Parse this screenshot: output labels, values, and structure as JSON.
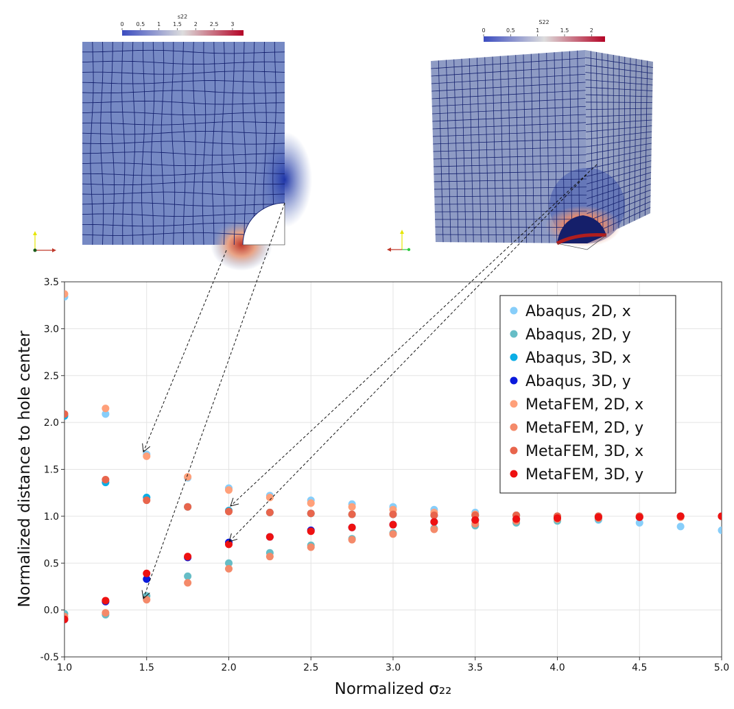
{
  "insets": {
    "left": {
      "colorbar_title": "s22",
      "colorbar_ticks": [
        "0",
        "0.5",
        "1",
        "1.5",
        "2",
        "2.5",
        "3"
      ]
    },
    "right": {
      "colorbar_title": "S22",
      "colorbar_ticks": [
        "0",
        "0.5",
        "1",
        "1.5",
        "2"
      ]
    }
  },
  "colors": {
    "abaqus_2d_x": "#87CEFA",
    "abaqus_2d_y": "#66BDC6",
    "abaqus_3d_x": "#0BAEE6",
    "abaqus_3d_y": "#0A1ADC",
    "metafem_2d_x": "#FFA07A",
    "metafem_2d_y": "#F48A6A",
    "metafem_3d_x": "#E8654C",
    "metafem_3d_y": "#EE1111",
    "colormap_low": "#3B4CC0",
    "colormap_mid": "#DDDDDD",
    "colormap_high": "#B40426"
  },
  "chart_data": {
    "type": "scatter",
    "xlabel": "Normalized σ₂₂",
    "ylabel": "Normalized distance to hole center",
    "xlim": [
      1.0,
      5.0
    ],
    "ylim": [
      -0.5,
      3.5
    ],
    "x_ticks": [
      "1.0",
      "1.5",
      "2.0",
      "2.5",
      "3.0",
      "3.5",
      "4.0",
      "4.5",
      "5.0"
    ],
    "y_ticks": [
      "-0.5",
      "0.0",
      "0.5",
      "1.0",
      "1.5",
      "2.0",
      "2.5",
      "3.0",
      "3.5"
    ],
    "grid": true,
    "legend_position": "top-right",
    "series": [
      {
        "name": "Abaqus, 2D, x",
        "color": "#87CEFA",
        "points": [
          [
            1.0,
            3.34
          ],
          [
            1.25,
            2.09
          ],
          [
            1.5,
            1.66
          ],
          [
            1.75,
            1.41
          ],
          [
            2.0,
            1.3
          ],
          [
            2.25,
            1.22
          ],
          [
            2.5,
            1.17
          ],
          [
            2.75,
            1.13
          ],
          [
            3.0,
            1.1
          ],
          [
            3.25,
            1.07
          ],
          [
            3.5,
            1.04
          ],
          [
            3.75,
            1.01
          ],
          [
            4.0,
            0.98
          ],
          [
            4.25,
            0.96
          ],
          [
            4.5,
            0.93
          ],
          [
            4.75,
            0.89
          ],
          [
            5.0,
            0.85
          ]
        ]
      },
      {
        "name": "Abaqus, 2D, y",
        "color": "#66BDC6",
        "points": [
          [
            1.0,
            -0.04
          ],
          [
            1.25,
            -0.05
          ],
          [
            1.5,
            0.15
          ],
          [
            1.75,
            0.36
          ],
          [
            2.0,
            0.5
          ],
          [
            2.25,
            0.61
          ],
          [
            2.5,
            0.69
          ],
          [
            2.75,
            0.76
          ],
          [
            3.0,
            0.82
          ],
          [
            3.25,
            0.87
          ],
          [
            3.5,
            0.9
          ],
          [
            3.75,
            0.93
          ],
          [
            4.0,
            0.95
          ],
          [
            4.25,
            0.97
          ],
          [
            4.5,
            0.99
          ],
          [
            4.75,
            1.0
          ],
          [
            5.0,
            1.0
          ]
        ]
      },
      {
        "name": "Abaqus, 3D, x",
        "color": "#0BAEE6",
        "points": [
          [
            1.0,
            2.07
          ],
          [
            1.25,
            1.36
          ],
          [
            1.5,
            1.2
          ],
          [
            1.75,
            1.1
          ],
          [
            2.0,
            1.06
          ],
          [
            2.25,
            1.04
          ],
          [
            2.5,
            1.03
          ],
          [
            2.75,
            1.02
          ],
          [
            3.0,
            1.02
          ],
          [
            3.25,
            1.01
          ],
          [
            3.5,
            1.01
          ],
          [
            3.75,
            1.01
          ],
          [
            4.0,
            1.0
          ],
          [
            4.25,
            1.0
          ],
          [
            4.5,
            1.0
          ],
          [
            4.75,
            1.0
          ],
          [
            5.0,
            1.0
          ]
        ]
      },
      {
        "name": "Abaqus, 3D, y",
        "color": "#0A1ADC",
        "points": [
          [
            1.0,
            -0.1
          ],
          [
            1.25,
            0.09
          ],
          [
            1.5,
            0.33
          ],
          [
            1.75,
            0.56
          ],
          [
            2.0,
            0.72
          ],
          [
            2.25,
            0.78
          ],
          [
            2.5,
            0.85
          ],
          [
            2.75,
            0.88
          ],
          [
            3.0,
            0.91
          ],
          [
            3.25,
            0.94
          ],
          [
            3.5,
            0.96
          ],
          [
            3.75,
            0.97
          ],
          [
            4.0,
            0.98
          ],
          [
            4.25,
            0.99
          ],
          [
            4.5,
            0.99
          ],
          [
            4.75,
            1.0
          ],
          [
            5.0,
            1.0
          ]
        ]
      },
      {
        "name": "MetaFEM, 2D, x",
        "color": "#FFA07A",
        "points": [
          [
            1.0,
            3.37
          ],
          [
            1.25,
            2.15
          ],
          [
            1.5,
            1.64
          ],
          [
            1.75,
            1.42
          ],
          [
            2.0,
            1.28
          ],
          [
            2.25,
            1.2
          ],
          [
            2.5,
            1.14
          ],
          [
            2.75,
            1.1
          ],
          [
            3.0,
            1.07
          ],
          [
            3.25,
            1.04
          ],
          [
            3.5,
            1.02
          ],
          [
            3.75,
            1.01
          ],
          [
            4.0,
            1.0
          ],
          [
            4.25,
            1.0
          ],
          [
            4.5,
            1.0
          ],
          [
            4.75,
            1.0
          ],
          [
            5.0,
            1.0
          ]
        ]
      },
      {
        "name": "MetaFEM, 2D, y",
        "color": "#F48A6A",
        "points": [
          [
            1.0,
            -0.07
          ],
          [
            1.25,
            -0.03
          ],
          [
            1.5,
            0.11
          ],
          [
            1.75,
            0.29
          ],
          [
            2.0,
            0.44
          ],
          [
            2.25,
            0.57
          ],
          [
            2.5,
            0.67
          ],
          [
            2.75,
            0.75
          ],
          [
            3.0,
            0.81
          ],
          [
            3.25,
            0.86
          ],
          [
            3.5,
            0.92
          ],
          [
            3.75,
            0.95
          ],
          [
            4.0,
            0.97
          ],
          [
            4.25,
            0.98
          ],
          [
            4.5,
            0.99
          ],
          [
            4.75,
            0.99
          ],
          [
            5.0,
            1.0
          ]
        ]
      },
      {
        "name": "MetaFEM, 3D, x",
        "color": "#E8654C",
        "points": [
          [
            1.0,
            2.09
          ],
          [
            1.25,
            1.39
          ],
          [
            1.5,
            1.17
          ],
          [
            1.75,
            1.1
          ],
          [
            2.0,
            1.05
          ],
          [
            2.25,
            1.04
          ],
          [
            2.5,
            1.03
          ],
          [
            2.75,
            1.02
          ],
          [
            3.0,
            1.02
          ],
          [
            3.25,
            1.01
          ],
          [
            3.5,
            1.01
          ],
          [
            3.75,
            1.01
          ],
          [
            4.0,
            1.0
          ],
          [
            4.25,
            1.0
          ],
          [
            4.5,
            1.0
          ],
          [
            4.75,
            1.0
          ],
          [
            5.0,
            1.0
          ]
        ]
      },
      {
        "name": "MetaFEM, 3D, y",
        "color": "#EE1111",
        "points": [
          [
            1.0,
            -0.1
          ],
          [
            1.25,
            0.1
          ],
          [
            1.5,
            0.39
          ],
          [
            1.75,
            0.57
          ],
          [
            2.0,
            0.7
          ],
          [
            2.25,
            0.78
          ],
          [
            2.5,
            0.84
          ],
          [
            2.75,
            0.88
          ],
          [
            3.0,
            0.91
          ],
          [
            3.25,
            0.94
          ],
          [
            3.5,
            0.96
          ],
          [
            3.75,
            0.97
          ],
          [
            4.0,
            0.98
          ],
          [
            4.25,
            0.99
          ],
          [
            4.5,
            0.99
          ],
          [
            4.75,
            1.0
          ],
          [
            5.0,
            1.0
          ]
        ]
      }
    ],
    "annotations": [
      {
        "type": "dashed-arrow",
        "from": "left-inset",
        "to": [
          1.5,
          1.66
        ]
      },
      {
        "type": "dashed-arrow",
        "from": "left-inset",
        "to": [
          1.5,
          0.1
        ]
      },
      {
        "type": "dashed-arrow",
        "from": "right-inset",
        "to": [
          2.0,
          1.06
        ]
      },
      {
        "type": "dashed-arrow",
        "from": "right-inset",
        "to": [
          2.0,
          0.72
        ]
      }
    ]
  }
}
